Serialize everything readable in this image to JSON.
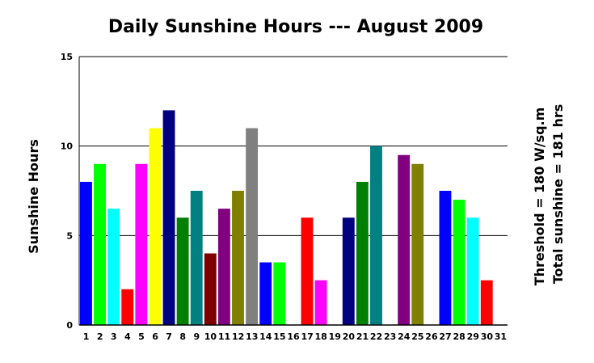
{
  "chart_data": {
    "type": "bar",
    "title": "Daily Sunshine Hours --- August 2009",
    "ylabel": "Sunshine Hours",
    "xlabel": "",
    "ylim": [
      0,
      15
    ],
    "yticks": [
      0,
      5,
      10,
      15
    ],
    "grid": true,
    "annotations": [
      "Threshold = 180 W/sq.m",
      "Total sunshine = 181 hrs"
    ],
    "categories": [
      "1",
      "2",
      "3",
      "4",
      "5",
      "6",
      "7",
      "8",
      "9",
      "10",
      "11",
      "12",
      "13",
      "14",
      "15",
      "16",
      "17",
      "18",
      "19",
      "20",
      "21",
      "22",
      "23",
      "24",
      "25",
      "26",
      "27",
      "28",
      "29",
      "30",
      "31"
    ],
    "values": [
      8,
      9,
      6.5,
      2,
      9,
      11,
      12,
      6,
      7.5,
      4,
      6.5,
      7.5,
      11,
      3.5,
      3.5,
      0,
      6,
      2.5,
      0,
      6,
      8,
      10,
      0,
      9.5,
      9,
      0,
      7.5,
      7,
      6,
      2.5,
      0
    ],
    "colors": [
      "#0000ff",
      "#00ff00",
      "#00ffff",
      "#ff0000",
      "#ff00ff",
      "#ffff00",
      "#000080",
      "#008000",
      "#008080",
      "#800000",
      "#800080",
      "#808000",
      "#808080",
      "#0000ff",
      "#00ff00",
      "#00ffff",
      "#ff0000",
      "#ff00ff",
      "#ffff00",
      "#000080",
      "#008000",
      "#008080",
      "#800000",
      "#800080",
      "#808000",
      "#808080",
      "#0000ff",
      "#00ff00",
      "#00ffff",
      "#ff0000",
      "#ff00ff"
    ]
  }
}
